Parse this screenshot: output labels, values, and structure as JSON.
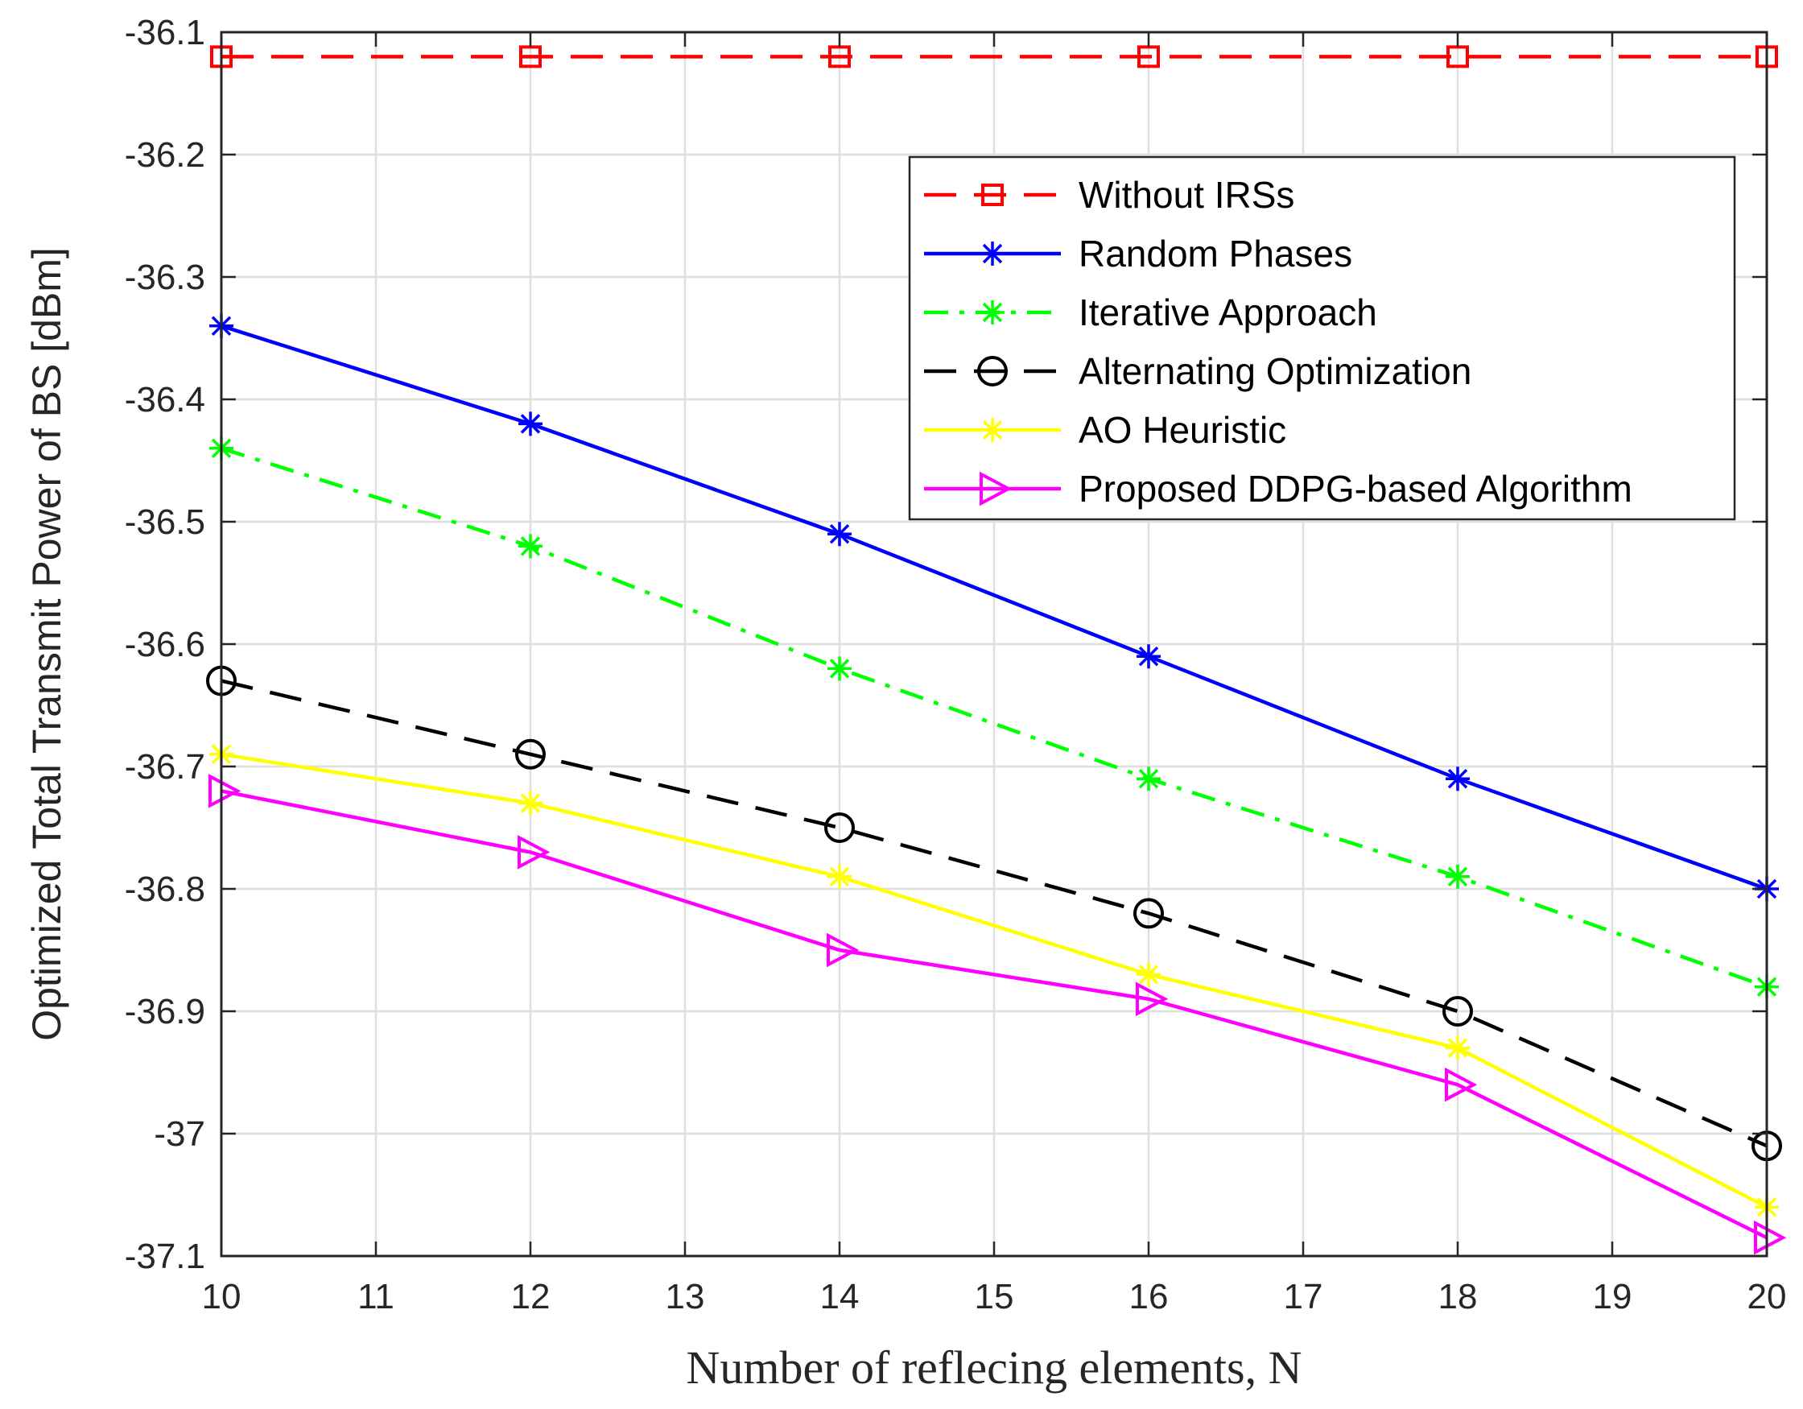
{
  "chart_data": {
    "type": "line",
    "title": "",
    "xlabel": "Number of reflecing elements, ",
    "xlabel_var": "N",
    "ylabel": "Optimized Total Transmit Power of BS [dBm]",
    "xlim": [
      10,
      20
    ],
    "ylim": [
      -37.1,
      -36.1
    ],
    "grid": true,
    "legend_position": "top-right",
    "x": [
      10,
      12,
      14,
      16,
      18,
      20
    ],
    "xticks": [
      10,
      11,
      12,
      13,
      14,
      15,
      16,
      17,
      18,
      19,
      20
    ],
    "xtick_labels": [
      "10",
      "11",
      "12",
      "13",
      "14",
      "15",
      "16",
      "17",
      "18",
      "19",
      "20"
    ],
    "yticks": [
      -36.1,
      -36.2,
      -36.3,
      -36.4,
      -36.5,
      -36.6,
      -36.7,
      -36.8,
      -36.9,
      -37.0,
      -37.1
    ],
    "ytick_labels": [
      "-36.1",
      "-36.2",
      "-36.3",
      "-36.4",
      "-36.5",
      "-36.6",
      "-36.7",
      "-36.8",
      "-36.9",
      "-37",
      "-37.1"
    ],
    "series": [
      {
        "name": "Without IRSs",
        "color": "#ff0000",
        "dash": "dashed",
        "marker": "square",
        "values": [
          -36.12,
          -36.12,
          -36.12,
          -36.12,
          -36.12,
          -36.12
        ]
      },
      {
        "name": "Random Phases",
        "color": "#0000ff",
        "dash": "solid",
        "marker": "asterisk",
        "values": [
          -36.34,
          -36.42,
          -36.51,
          -36.61,
          -36.71,
          -36.8
        ]
      },
      {
        "name": "Iterative Approach",
        "color": "#00ff00",
        "dash": "dashdot",
        "marker": "asterisk",
        "values": [
          -36.44,
          -36.52,
          -36.62,
          -36.71,
          -36.79,
          -36.88
        ]
      },
      {
        "name": "Alternating Optimization",
        "color": "#000000",
        "dash": "dashed",
        "marker": "circle",
        "values": [
          -36.63,
          -36.69,
          -36.75,
          -36.82,
          -36.9,
          -37.01
        ]
      },
      {
        "name": "AO Heuristic",
        "color": "#ffff00",
        "dash": "solid",
        "marker": "asterisk",
        "values": [
          -36.69,
          -36.73,
          -36.79,
          -36.87,
          -36.93,
          -37.06
        ]
      },
      {
        "name": "Proposed DDPG-based Algorithm",
        "color": "#ff00ff",
        "dash": "solid",
        "marker": "triangle-right",
        "values": [
          -36.72,
          -36.77,
          -36.85,
          -36.89,
          -36.96,
          -37.085
        ]
      }
    ]
  }
}
